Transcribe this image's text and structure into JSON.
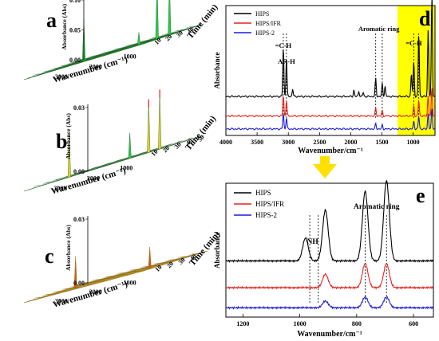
{
  "colors": {
    "black": "#000000",
    "red": "#e8201a",
    "blue": "#1a1adf",
    "green": "#2e9a3a",
    "gold": "#c9a42a",
    "highlight": "#ffff00",
    "arrow": "#ffe000"
  },
  "chart_data": [
    {
      "panel": "a",
      "type": "surface3d",
      "letter": "a",
      "zlabel": "Absorbance (Abs)",
      "xlabel": "Wavenumber (cm⁻¹)",
      "ylabel": "Time (min)",
      "zticks": [
        "0.10",
        "0.05",
        "0.00"
      ],
      "xticks": [
        "3000",
        "2000",
        "1000"
      ],
      "yticks": [
        "10",
        "20",
        "30",
        "40"
      ],
      "peaks": [
        {
          "wavenumber": 2950,
          "time": 22,
          "abs": 0.07
        },
        {
          "wavenumber": 1000,
          "time": 28,
          "abs": 0.1
        },
        {
          "wavenumber": 700,
          "time": 30,
          "abs": 0.09
        },
        {
          "wavenumber": 1500,
          "time": 27,
          "abs": 0.02
        }
      ]
    },
    {
      "panel": "b",
      "type": "surface3d",
      "letter": "b",
      "zlabel": "Absorbance (Abs)",
      "xlabel": "Wavenumber (cm⁻¹)",
      "ylabel": "Time (min)",
      "zticks": [
        "0.03",
        "0.00"
      ],
      "xticks": [
        "3000",
        "2000",
        "1000"
      ],
      "yticks": [
        "10",
        "20",
        "30",
        "40",
        "50"
      ],
      "peaks": [
        {
          "wavenumber": 3050,
          "time": 12,
          "abs": 0.02
        },
        {
          "wavenumber": 1000,
          "time": 22,
          "abs": 0.025
        },
        {
          "wavenumber": 700,
          "time": 23,
          "abs": 0.028
        },
        {
          "wavenumber": 1500,
          "time": 20,
          "abs": 0.012
        }
      ]
    },
    {
      "panel": "c",
      "type": "surface3d",
      "letter": "c",
      "zlabel": "Absorbance (Abs)",
      "xlabel": "Wavenumber (cm⁻¹)",
      "ylabel": "Time (min)",
      "zticks": [
        "0.03",
        "0.00"
      ],
      "xticks": [
        "3000",
        "2000",
        "1000"
      ],
      "yticks": [
        "10",
        "20",
        "30",
        "40"
      ],
      "peaks": [
        {
          "wavenumber": 3000,
          "time": 15,
          "abs": 0.015
        },
        {
          "wavenumber": 1000,
          "time": 20,
          "abs": 0.01
        }
      ]
    },
    {
      "panel": "d",
      "type": "line",
      "letter": "d",
      "xlabel": "Wavenumber/cm⁻¹",
      "ylabel": "Absorbance",
      "xlim": [
        4000,
        650
      ],
      "xticks": [
        4000,
        3500,
        3000,
        2500,
        2000,
        1500,
        1000
      ],
      "highlight": [
        1250,
        650
      ],
      "annotations": [
        {
          "text": "=C-H",
          "x": 3080
        },
        {
          "text": "AR-H",
          "x": 3030
        },
        {
          "text": "Aromatic ring",
          "x": 1550
        },
        {
          "text": "=C-H",
          "x": 990
        }
      ],
      "dashed_x": [
        3080,
        3030,
        1600,
        1495,
        990,
        910
      ],
      "legend": [
        "HIPS",
        "HIPS/IFR",
        "HIPS-2"
      ],
      "series": [
        {
          "name": "HIPS",
          "offset": 0.3,
          "peaks": [
            [
              3080,
              0.38
            ],
            [
              3030,
              0.3
            ],
            [
              2930,
              0.06
            ],
            [
              1950,
              0.05
            ],
            [
              1870,
              0.04
            ],
            [
              1800,
              0.03
            ],
            [
              1600,
              0.14
            ],
            [
              1495,
              0.1
            ],
            [
              1450,
              0.08
            ],
            [
              1028,
              0.18
            ],
            [
              990,
              0.27
            ],
            [
              910,
              0.5
            ],
            [
              760,
              0.52
            ],
            [
              700,
              0.8
            ]
          ]
        },
        {
          "name": "HIPS/IFR",
          "offset": 0.15,
          "peaks": [
            [
              3080,
              0.16
            ],
            [
              3030,
              0.12
            ],
            [
              1600,
              0.06
            ],
            [
              1495,
              0.04
            ],
            [
              990,
              0.08
            ],
            [
              910,
              0.12
            ],
            [
              760,
              0.16
            ],
            [
              700,
              0.22
            ]
          ]
        },
        {
          "name": "HIPS-2",
          "offset": 0.05,
          "peaks": [
            [
              3080,
              0.12
            ],
            [
              3030,
              0.09
            ],
            [
              1600,
              0.04
            ],
            [
              1495,
              0.03
            ],
            [
              990,
              0.06
            ],
            [
              910,
              0.1
            ],
            [
              760,
              0.12
            ],
            [
              700,
              0.16
            ]
          ]
        }
      ]
    },
    {
      "panel": "e",
      "type": "line",
      "letter": "e",
      "xlabel": "Wavenumber/cm⁻¹",
      "ylabel": "Absorbance",
      "xlim": [
        1260,
        530
      ],
      "xticks": [
        1200,
        1000,
        800,
        600
      ],
      "annotations": [
        {
          "text": "NH",
          "x": 955
        },
        {
          "text": "Aromatic ring",
          "x": 730
        }
      ],
      "dashed_x": [
        965,
        935,
        770,
        695
      ],
      "legend": [
        "HIPS",
        "HIPS/IFR",
        "HIPS-2"
      ],
      "series": [
        {
          "name": "HIPS",
          "offset": 0.42,
          "peaks": [
            [
              980,
              0.17
            ],
            [
              910,
              0.38
            ],
            [
              770,
              0.52
            ],
            [
              695,
              0.6
            ]
          ]
        },
        {
          "name": "HIPS/IFR",
          "offset": 0.22,
          "peaks": [
            [
              910,
              0.1
            ],
            [
              770,
              0.18
            ],
            [
              695,
              0.18
            ]
          ]
        },
        {
          "name": "HIPS-2",
          "offset": 0.07,
          "peaks": [
            [
              910,
              0.05
            ],
            [
              770,
              0.08
            ],
            [
              695,
              0.08
            ]
          ]
        }
      ]
    }
  ]
}
